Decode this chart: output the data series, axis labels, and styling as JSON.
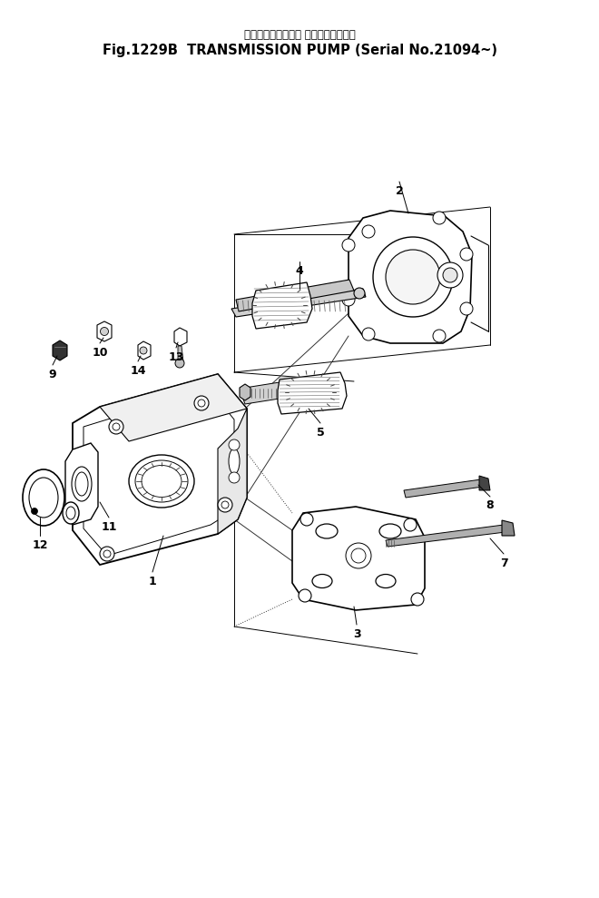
{
  "title_jp": "トランスミッション ポンプ（適用号機",
  "title_en": "Fig.1229B  TRANSMISSION PUMP (Serial No.21094~)",
  "bg_color": "#ffffff",
  "lc": "#000000",
  "figsize": [
    6.6,
    9.89
  ],
  "dpi": 100
}
